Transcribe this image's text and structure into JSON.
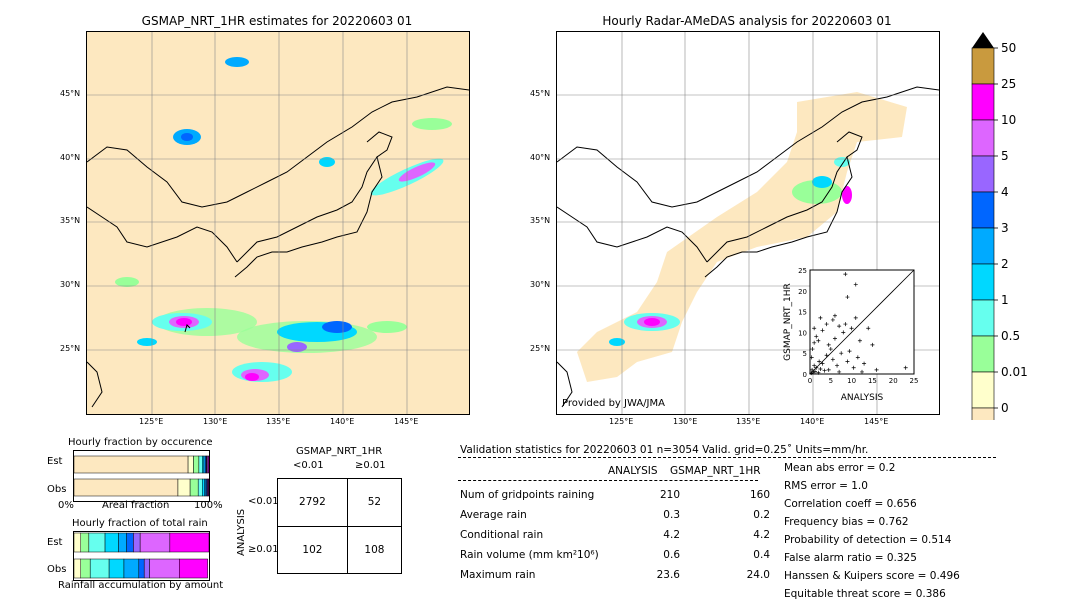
{
  "left_map": {
    "title": "GSMAP_NRT_1HR estimates for 20220603 01",
    "lat_labels": [
      "45°N",
      "40°N",
      "35°N",
      "30°N",
      "25°N"
    ],
    "lon_labels": [
      "125°E",
      "130°E",
      "135°E",
      "140°E",
      "145°E"
    ]
  },
  "right_map": {
    "title": "Hourly Radar-AMeDAS analysis for 20220603 01",
    "lat_labels": [
      "45°N",
      "40°N",
      "35°N",
      "30°N",
      "25°N"
    ],
    "lon_labels": [
      "125°E",
      "130°E",
      "135°E",
      "140°E",
      "145°E"
    ],
    "credit": "Provided by JWA/JMA"
  },
  "colorbar": {
    "labels": [
      "50",
      "25",
      "10",
      "5",
      "4",
      "3",
      "2",
      "1",
      "0.5",
      "0.01",
      "0"
    ],
    "colors": [
      "#c99a3e",
      "#ff00ff",
      "#dd66ff",
      "#9966ff",
      "#0066ff",
      "#00aaff",
      "#00d8ff",
      "#66ffee",
      "#99ff99",
      "#ffffcc",
      "#fde8c0"
    ]
  },
  "fraction_occurrence": {
    "title": "Hourly fraction by occurence",
    "rows": [
      "Est",
      "Obs"
    ],
    "axis_left": "0%",
    "axis_mid": "Areal fraction",
    "axis_right": "100%"
  },
  "fraction_total": {
    "title": "Hourly fraction of total rain",
    "rows": [
      "Est",
      "Obs"
    ],
    "xlabel": "Rainfall accumulation by amount"
  },
  "contingency": {
    "title": "GSMAP_NRT_1HR",
    "col_headers": [
      "<0.01",
      "≥0.01"
    ],
    "row_label": "ANALYSIS",
    "row_headers": [
      "<0.01",
      "≥0.01"
    ],
    "cells": [
      [
        "2792",
        "52"
      ],
      [
        "102",
        "108"
      ]
    ]
  },
  "validation": {
    "header": "Validation statistics for 20220603 01  n=3054 Valid. grid=0.25˚ Units=mm/hr.",
    "col_analysis": "ANALYSIS",
    "col_gsmap": "GSMAP_NRT_1HR",
    "rows": [
      {
        "label": "Num of gridpoints raining",
        "analysis": "210",
        "gsmap": "160"
      },
      {
        "label": "Average rain",
        "analysis": "0.3",
        "gsmap": "0.2"
      },
      {
        "label": "Conditional rain",
        "analysis": "4.2",
        "gsmap": "4.2"
      },
      {
        "label": "Rain volume (mm km²10⁶)",
        "analysis": "0.6",
        "gsmap": "0.4"
      },
      {
        "label": "Maximum rain",
        "analysis": "23.6",
        "gsmap": "24.0"
      }
    ],
    "scores": [
      "Mean abs error =    0.2",
      "RMS error =    1.0",
      "Correlation coeff =  0.656",
      "Frequency bias =  0.762",
      "Probability of detection =  0.514",
      "False alarm ratio =  0.325",
      "Hanssen & Kuipers score =  0.496",
      "Equitable threat score =  0.386"
    ]
  },
  "chart_data": [
    {
      "type": "scatter",
      "xlabel": "ANALYSIS",
      "ylabel": "GSMAP_NRT_1HR",
      "xlim": [
        0,
        25
      ],
      "ylim": [
        0,
        25
      ],
      "ticks": [
        "0",
        "5",
        "10",
        "15",
        "20",
        "25"
      ],
      "points": [
        [
          0.3,
          0.2
        ],
        [
          0.5,
          1.0
        ],
        [
          0.8,
          0.4
        ],
        [
          1.0,
          2.0
        ],
        [
          1.2,
          0.6
        ],
        [
          1.5,
          1.5
        ],
        [
          2.0,
          0.3
        ],
        [
          2.2,
          3.0
        ],
        [
          0.4,
          4.0
        ],
        [
          0.6,
          6.0
        ],
        [
          1.0,
          7.5
        ],
        [
          1.5,
          9.0
        ],
        [
          2.5,
          1.2
        ],
        [
          3.0,
          2.5
        ],
        [
          3.5,
          0.8
        ],
        [
          4.0,
          4.5
        ],
        [
          4.5,
          1.0
        ],
        [
          5.0,
          6.0
        ],
        [
          5.5,
          3.5
        ],
        [
          6.0,
          8.5
        ],
        [
          6.5,
          2.0
        ],
        [
          7.0,
          11.5
        ],
        [
          7.5,
          5.0
        ],
        [
          8.0,
          10.0
        ],
        [
          8.5,
          12.0
        ],
        [
          9.0,
          3.0
        ],
        [
          9.5,
          5.5
        ],
        [
          10.0,
          11.0
        ],
        [
          10.5,
          1.5
        ],
        [
          11.0,
          13.5
        ],
        [
          11.5,
          4.0
        ],
        [
          12.0,
          8.0
        ],
        [
          13.0,
          2.5
        ],
        [
          14.0,
          11.0
        ],
        [
          15.0,
          7.0
        ],
        [
          16.0,
          1.0
        ],
        [
          3.0,
          10.5
        ],
        [
          4.0,
          12.0
        ],
        [
          2.0,
          8.0
        ],
        [
          5.5,
          13.0
        ],
        [
          6.0,
          14.0
        ],
        [
          9.0,
          18.5
        ],
        [
          11.0,
          21.5
        ],
        [
          8.5,
          24.0
        ],
        [
          1.0,
          11.0
        ],
        [
          2.5,
          13.5
        ],
        [
          23.0,
          1.5
        ],
        [
          12.5,
          0.5
        ],
        [
          7.0,
          0.5
        ],
        [
          4.5,
          7.0
        ]
      ]
    },
    {
      "type": "bar",
      "title": "Hourly fraction by occurence",
      "categories": [
        "Est",
        "Obs"
      ],
      "stacked": true,
      "series_colors": [
        "#fde8c0",
        "#ffffcc",
        "#99ff99",
        "#66ffee",
        "#00d8ff",
        "#00aaff",
        "#0066ff",
        "#9966ff",
        "#dd66ff",
        "#ff00ff",
        "#c99a3e"
      ],
      "series": [
        {
          "values": [
            0.845,
            0.77
          ]
        },
        {
          "values": [
            0.04,
            0.09
          ]
        },
        {
          "values": [
            0.04,
            0.06
          ]
        },
        {
          "values": [
            0.025,
            0.03
          ]
        },
        {
          "values": [
            0.012,
            0.015
          ]
        },
        {
          "values": [
            0.01,
            0.012
          ]
        },
        {
          "values": [
            0.008,
            0.008
          ]
        },
        {
          "values": [
            0.005,
            0.005
          ]
        },
        {
          "values": [
            0.008,
            0.005
          ]
        },
        {
          "values": [
            0.007,
            0.005
          ]
        },
        {
          "values": [
            0,
            0
          ]
        }
      ]
    },
    {
      "type": "bar",
      "title": "Hourly fraction of total rain",
      "categories": [
        "Est",
        "Obs"
      ],
      "stacked": true,
      "xlabel": "Rainfall accumulation by amount",
      "series_colors": [
        "#fde8c0",
        "#ffffcc",
        "#99ff99",
        "#66ffee",
        "#00d8ff",
        "#00aaff",
        "#0066ff",
        "#9966ff",
        "#dd66ff",
        "#ff00ff",
        "#c99a3e"
      ],
      "series": [
        {
          "values": [
            0.0,
            0.0
          ]
        },
        {
          "values": [
            0.05,
            0.05
          ]
        },
        {
          "values": [
            0.06,
            0.07
          ]
        },
        {
          "values": [
            0.12,
            0.14
          ]
        },
        {
          "values": [
            0.1,
            0.11
          ]
        },
        {
          "values": [
            0.06,
            0.11
          ]
        },
        {
          "values": [
            0.05,
            0.04
          ]
        },
        {
          "values": [
            0.05,
            0.04
          ]
        },
        {
          "values": [
            0.22,
            0.22
          ]
        },
        {
          "values": [
            0.29,
            0.21
          ]
        },
        {
          "values": [
            0,
            0
          ]
        }
      ]
    }
  ]
}
